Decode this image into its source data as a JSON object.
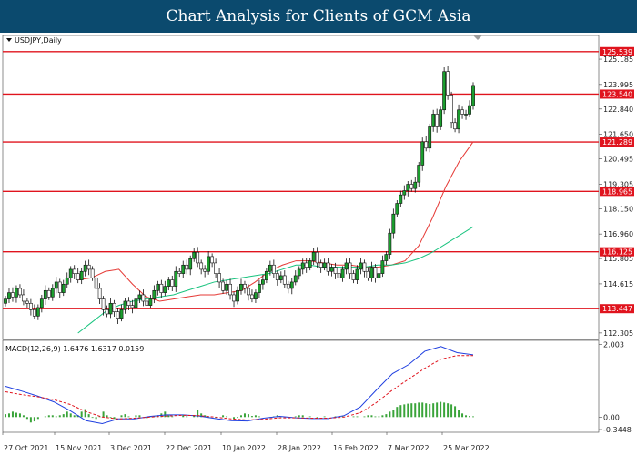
{
  "header": {
    "title": "Chart Analysis for Clients of GCM Asia"
  },
  "chart_data": {
    "type": "candlestick",
    "symbol_label": "USDJPY,Daily",
    "price_axis": {
      "ticks": [
        "125.185",
        "123.995",
        "122.840",
        "121.650",
        "120.495",
        "119.305",
        "118.150",
        "116.960",
        "115.805",
        "114.615",
        "113.460",
        "112.305"
      ],
      "range": [
        112.0,
        126.3
      ]
    },
    "levels": [
      {
        "label": "125.539",
        "value": 125.539
      },
      {
        "label": "123.540",
        "value": 123.54
      },
      {
        "label": "121.289",
        "value": 121.289
      },
      {
        "label": "118.965",
        "value": 118.965
      },
      {
        "label": "116.125",
        "value": 116.125
      },
      {
        "label": "113.447",
        "value": 113.447
      }
    ],
    "date_axis": [
      "27 Oct 2021",
      "15 Nov 2021",
      "3 Dec 2021",
      "22 Dec 2021",
      "10 Jan 2022",
      "28 Jan 2022",
      "16 Feb 2022",
      "7 Mar 2022",
      "25 Mar 2022"
    ],
    "closes": [
      113.9,
      114.2,
      114.0,
      114.4,
      114.1,
      113.8,
      113.7,
      113.4,
      113.1,
      113.5,
      113.9,
      114.3,
      114.0,
      114.4,
      114.7,
      114.2,
      114.6,
      114.9,
      115.3,
      115.1,
      114.8,
      115.2,
      115.5,
      115.3,
      114.9,
      114.4,
      113.9,
      113.4,
      113.2,
      113.7,
      113.3,
      113.0,
      113.4,
      113.8,
      113.6,
      113.5,
      113.9,
      114.1,
      113.8,
      113.6,
      113.9,
      114.3,
      114.6,
      114.2,
      114.5,
      114.8,
      114.5,
      115.2,
      115.1,
      115.5,
      115.3,
      115.8,
      116.1,
      115.6,
      115.3,
      115.2,
      115.9,
      115.6,
      115.1,
      114.7,
      114.3,
      114.6,
      114.1,
      113.8,
      114.3,
      114.6,
      114.4,
      114.1,
      113.9,
      114.2,
      114.6,
      114.8,
      115.2,
      115.5,
      115.1,
      114.8,
      115.0,
      114.6,
      114.4,
      114.7,
      115.0,
      115.3,
      115.6,
      115.4,
      115.7,
      116.1,
      115.6,
      115.4,
      115.6,
      115.2,
      115.4,
      115.1,
      114.9,
      115.3,
      115.6,
      115.1,
      114.8,
      115.3,
      115.6,
      115.2,
      114.9,
      115.4,
      114.9,
      115.1,
      115.7,
      116.0,
      117.0,
      117.9,
      118.4,
      118.8,
      119.0,
      119.3,
      119.1,
      119.4,
      120.2,
      121.3,
      121.0,
      122.0,
      122.6,
      122.0,
      122.8,
      124.6,
      123.5,
      122.2,
      121.9,
      122.8,
      122.6,
      122.6,
      123.0,
      123.95
    ],
    "moving_averages": [
      {
        "color": "#e53935",
        "start": 20,
        "points": [
          114.8,
          114.9,
          115.2,
          115.3,
          114.6,
          114.0,
          113.8,
          113.9,
          114.0,
          114.1,
          114.1,
          114.2,
          114.3,
          114.7,
          115.2,
          115.5,
          115.7,
          115.7,
          115.6,
          115.5,
          115.5,
          115.4,
          115.4,
          115.5,
          115.7,
          116.4,
          117.7,
          119.2,
          120.4,
          121.3
        ]
      },
      {
        "color": "#18c37e",
        "start": 20,
        "points": [
          112.3,
          112.8,
          113.3,
          113.6,
          113.8,
          113.9,
          114.0,
          114.1,
          114.3,
          114.5,
          114.7,
          114.8,
          114.9,
          115.0,
          115.1,
          115.3,
          115.5,
          115.5,
          115.4,
          115.4,
          115.4,
          115.4,
          115.5,
          115.5,
          115.6,
          115.8,
          116.1,
          116.5,
          116.9,
          117.3
        ]
      }
    ],
    "macd": {
      "label": "MACD(12,26,9) 1.6476 1.6317 0.0159",
      "ticks": [
        "2.003",
        "0.00",
        "-0.3448"
      ],
      "range": [
        -0.42,
        2.12
      ],
      "macd_points": [
        0.85,
        0.72,
        0.58,
        0.42,
        0.18,
        -0.1,
        -0.18,
        -0.05,
        -0.05,
        0.02,
        0.06,
        0.06,
        0.03,
        -0.04,
        -0.1,
        -0.11,
        -0.03,
        0.02,
        -0.02,
        -0.04,
        -0.04,
        0.04,
        0.28,
        0.75,
        1.2,
        1.45,
        1.82,
        1.95,
        1.78,
        1.72
      ],
      "signal_points": [
        0.7,
        0.62,
        0.56,
        0.48,
        0.35,
        0.15,
        0.0,
        -0.05,
        -0.03,
        0.0,
        0.03,
        0.05,
        0.04,
        0.0,
        -0.05,
        -0.08,
        -0.06,
        -0.02,
        -0.02,
        -0.03,
        -0.03,
        0.0,
        0.12,
        0.4,
        0.75,
        1.05,
        1.35,
        1.6,
        1.7,
        1.7
      ],
      "hist_points": [
        0.08,
        0.1,
        0.15,
        0.12,
        0.1,
        0.05,
        -0.05,
        -0.15,
        -0.12,
        -0.05,
        0.0,
        0.02,
        0.05,
        0.05,
        0.02,
        0.05,
        0.08,
        0.15,
        0.1,
        0.05,
        0.05,
        0.15,
        0.22,
        0.08,
        -0.02,
        -0.05,
        0.02,
        0.15,
        0.05,
        -0.02,
        -0.05,
        0.0,
        0.05,
        0.08,
        0.02,
        0.0,
        0.05,
        0.05,
        0.0,
        -0.03,
        0.02,
        0.02,
        0.05,
        0.1,
        0.15,
        0.05,
        0.02,
        0.0,
        0.0,
        0.05,
        0.02,
        0.0,
        0.05,
        0.2,
        0.1,
        0.05,
        0.02,
        0.0,
        -0.02,
        0.0,
        0.05,
        0.02,
        0.0,
        -0.05,
        -0.02,
        0.05,
        0.1,
        0.08,
        0.03,
        0.05,
        0.02,
        0.0,
        0.0,
        -0.02,
        0.02,
        0.05,
        0.02,
        0.0,
        -0.02,
        0.0,
        0.02,
        0.05,
        0.05,
        0.0,
        0.02,
        0.0,
        -0.02,
        0.0,
        0.02,
        0.0,
        0.0,
        0.02,
        0.0,
        0.02,
        0.0,
        0.0,
        0.02,
        0.02,
        0.0,
        0.02,
        0.05,
        0.05,
        0.02,
        0.02,
        0.05,
        0.08,
        0.15,
        0.2,
        0.28,
        0.33,
        0.35,
        0.37,
        0.38,
        0.38,
        0.4,
        0.4,
        0.38,
        0.36,
        0.38,
        0.4,
        0.42,
        0.4,
        0.38,
        0.35,
        0.3,
        0.2,
        0.1,
        0.05,
        0.03,
        0.02
      ]
    }
  }
}
